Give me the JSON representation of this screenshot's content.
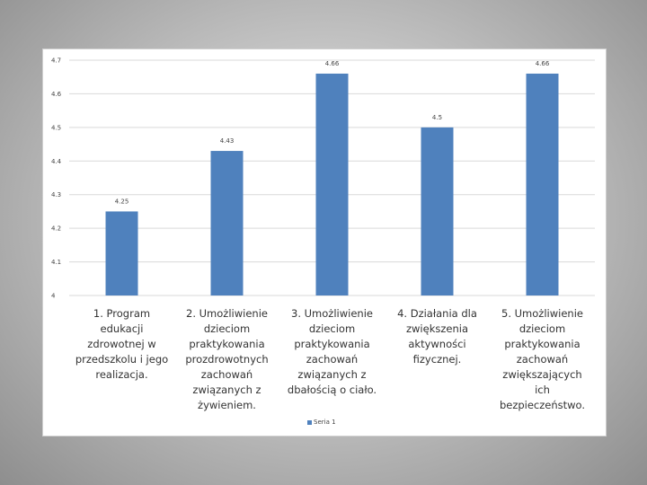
{
  "colors": {
    "bar": "#4f81bd",
    "grid": "#d9d9d9",
    "background": "#ffffff"
  },
  "chart_data": {
    "type": "bar",
    "categories": [
      "1. Program  edukacji zdrowotnej w przedszkolu i jego realizacja.",
      "2. Umożliwienie dzieciom praktykowania prozdrowotnych zachowań związanych z żywieniem.",
      "3. Umożliwienie dzieciom praktykowania zachowań związanych z dbałością o ciało.",
      "4. Działania dla zwiększenia aktywności fizycznej.",
      "5. Umożliwienie dzieciom praktykowania zachowań zwiększających ich bezpieczeństwo."
    ],
    "series": [
      {
        "name": "Seria 1",
        "values": [
          4.25,
          4.43,
          4.66,
          4.5,
          4.66
        ]
      }
    ],
    "data_labels": [
      "4.25",
      "4.43",
      "4.66",
      "4.5",
      "4.66"
    ],
    "yticks": [
      "4",
      "4.1",
      "4.2",
      "4.3",
      "4.4",
      "4.5",
      "4.6",
      "4.7"
    ],
    "ylim": [
      4,
      4.7
    ],
    "grid": true,
    "legend": "bottom"
  }
}
